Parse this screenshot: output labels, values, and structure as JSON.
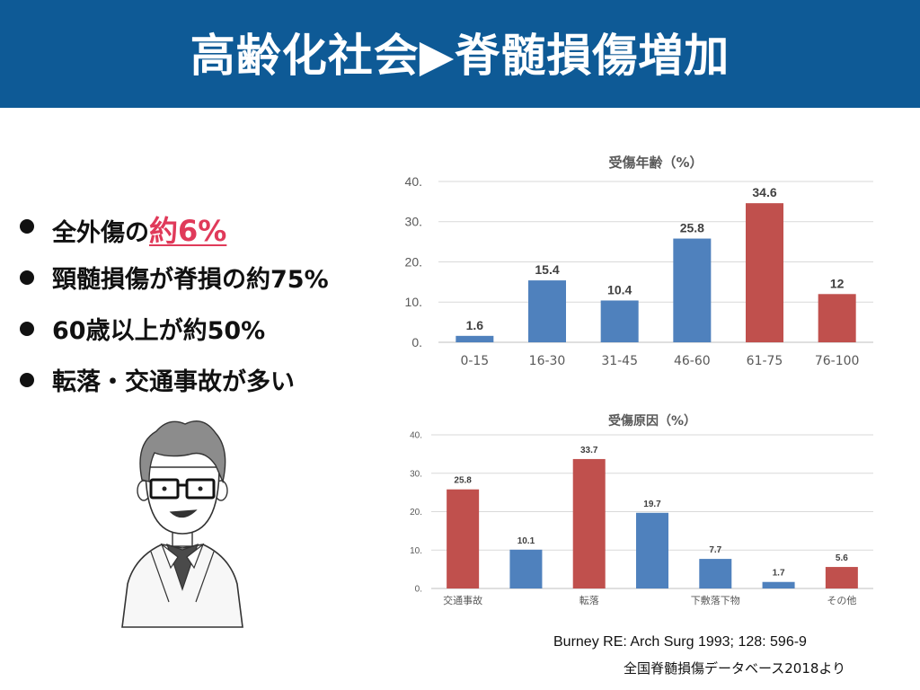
{
  "header": {
    "title": "高齢化社会▶脊髄損傷増加"
  },
  "bullets": [
    {
      "prefix": "全外傷の",
      "highlight": "約6%"
    },
    {
      "text": "頸髄損傷が脊損の約75%"
    },
    {
      "text": "60歳以上が約50%"
    },
    {
      "text": "転落・交通事故が多い"
    }
  ],
  "colors": {
    "header_bg": "#0e5a96",
    "blue": "#4f81bd",
    "red": "#c0504d",
    "highlight": "#e03a5a"
  },
  "illustration": {
    "icon": "doctor-with-glasses-icon"
  },
  "chart_data": [
    {
      "type": "bar",
      "title": "受傷年齢（%）",
      "categories": [
        "0-15",
        "16-30",
        "31-45",
        "46-60",
        "61-75",
        "76-100"
      ],
      "values": [
        1.6,
        15.4,
        10.4,
        25.8,
        34.6,
        12
      ],
      "value_labels": [
        "1.6",
        "15.4",
        "10.4",
        "25.8",
        "34.6",
        "12"
      ],
      "bar_colors": [
        "#4f81bd",
        "#4f81bd",
        "#4f81bd",
        "#4f81bd",
        "#c0504d",
        "#c0504d"
      ],
      "ylim": [
        0,
        40
      ],
      "yticks": [
        "0.",
        "10.",
        "20.",
        "30.",
        "40."
      ],
      "grid": true
    },
    {
      "type": "bar",
      "title": "受傷原因（%）",
      "categories": [
        "交通事故",
        "",
        "転落",
        "",
        "下敷落下物",
        "",
        "その他"
      ],
      "values": [
        25.8,
        10.1,
        33.7,
        19.7,
        7.7,
        1.7,
        5.6
      ],
      "value_labels": [
        "25.8",
        "10.1",
        "33.7",
        "19.7",
        "7.7",
        "1.7",
        "5.6"
      ],
      "bar_colors": [
        "#c0504d",
        "#4f81bd",
        "#c0504d",
        "#4f81bd",
        "#4f81bd",
        "#4f81bd",
        "#c0504d"
      ],
      "ylim": [
        0,
        40
      ],
      "yticks": [
        "0.",
        "10.",
        "20.",
        "30.",
        "40."
      ],
      "grid": true
    }
  ],
  "references": {
    "citation": "Burney RE: Arch Surg 1993; 128: 596-9",
    "database": "全国脊髄損傷データベース2018より"
  }
}
